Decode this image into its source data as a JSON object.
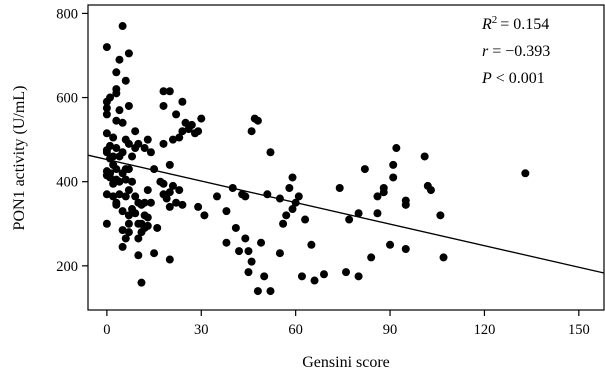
{
  "chart_data": {
    "type": "scatter",
    "xlabel": "Gensini score",
    "ylabel": "PON1 activity (U/mL)",
    "xlim": [
      -6,
      158
    ],
    "ylim": [
      95,
      820
    ],
    "x_ticks": [
      0,
      30,
      60,
      90,
      120,
      150
    ],
    "y_ticks": [
      200,
      400,
      600,
      800
    ],
    "grid": false,
    "series": [
      {
        "points": [
          [
            0,
            720
          ],
          [
            0,
            575
          ],
          [
            0,
            590
          ],
          [
            0,
            560
          ],
          [
            0,
            515
          ],
          [
            0,
            475
          ],
          [
            0,
            470
          ],
          [
            0,
            425
          ],
          [
            0,
            415
          ],
          [
            0,
            370
          ],
          [
            0,
            300
          ],
          [
            1,
            600
          ],
          [
            1,
            485
          ],
          [
            1,
            455
          ],
          [
            1,
            420
          ],
          [
            1,
            410
          ],
          [
            2,
            505
          ],
          [
            2,
            460
          ],
          [
            2,
            440
          ],
          [
            2,
            395
          ],
          [
            2,
            365
          ],
          [
            3,
            660
          ],
          [
            3,
            620
          ],
          [
            3,
            610
          ],
          [
            3,
            545
          ],
          [
            3,
            480
          ],
          [
            3,
            430
          ],
          [
            3,
            405
          ],
          [
            3,
            350
          ],
          [
            3,
            345
          ],
          [
            4,
            690
          ],
          [
            4,
            570
          ],
          [
            4,
            460
          ],
          [
            4,
            400
          ],
          [
            4,
            370
          ],
          [
            5,
            770
          ],
          [
            5,
            540
          ],
          [
            5,
            470
          ],
          [
            5,
            420
          ],
          [
            5,
            330
          ],
          [
            5,
            285
          ],
          [
            5,
            245
          ],
          [
            6,
            640
          ],
          [
            6,
            500
          ],
          [
            6,
            430
          ],
          [
            6,
            405
          ],
          [
            6,
            365
          ],
          [
            6,
            265
          ],
          [
            7,
            705
          ],
          [
            7,
            580
          ],
          [
            7,
            490
          ],
          [
            7,
            430
          ],
          [
            7,
            380
          ],
          [
            7,
            320
          ],
          [
            7,
            300
          ],
          [
            7,
            280
          ],
          [
            8,
            460
          ],
          [
            8,
            400
          ],
          [
            8,
            335
          ],
          [
            9,
            520
          ],
          [
            9,
            480
          ],
          [
            9,
            365
          ],
          [
            9,
            325
          ],
          [
            10,
            490
          ],
          [
            10,
            350
          ],
          [
            10,
            300
          ],
          [
            10,
            265
          ],
          [
            10,
            225
          ],
          [
            11,
            345
          ],
          [
            11,
            300
          ],
          [
            11,
            280
          ],
          [
            11,
            160
          ],
          [
            12,
            480
          ],
          [
            12,
            350
          ],
          [
            12,
            320
          ],
          [
            12,
            290
          ],
          [
            13,
            500
          ],
          [
            13,
            380
          ],
          [
            13,
            315
          ],
          [
            13,
            295
          ],
          [
            14,
            470
          ],
          [
            14,
            350
          ],
          [
            15,
            430
          ],
          [
            15,
            230
          ],
          [
            16,
            290
          ],
          [
            17,
            400
          ],
          [
            18,
            615
          ],
          [
            18,
            580
          ],
          [
            18,
            490
          ],
          [
            18,
            395
          ],
          [
            18,
            370
          ],
          [
            19,
            360
          ],
          [
            20,
            615
          ],
          [
            20,
            440
          ],
          [
            20,
            375
          ],
          [
            20,
            340
          ],
          [
            20,
            215
          ],
          [
            21,
            500
          ],
          [
            21,
            390
          ],
          [
            22,
            560
          ],
          [
            22,
            350
          ],
          [
            23,
            505
          ],
          [
            23,
            380
          ],
          [
            24,
            590
          ],
          [
            24,
            520
          ],
          [
            24,
            345
          ],
          [
            25,
            540
          ],
          [
            26,
            525
          ],
          [
            27,
            535
          ],
          [
            28,
            515
          ],
          [
            29,
            520
          ],
          [
            29,
            340
          ],
          [
            30,
            550
          ],
          [
            31,
            320
          ],
          [
            35,
            365
          ],
          [
            38,
            330
          ],
          [
            38,
            255
          ],
          [
            40,
            385
          ],
          [
            41,
            290
          ],
          [
            42,
            235
          ],
          [
            43,
            370
          ],
          [
            44,
            365
          ],
          [
            44,
            265
          ],
          [
            45,
            235
          ],
          [
            45,
            185
          ],
          [
            46,
            210
          ],
          [
            46,
            520
          ],
          [
            47,
            550
          ],
          [
            48,
            545
          ],
          [
            48,
            140
          ],
          [
            49,
            255
          ],
          [
            50,
            175
          ],
          [
            51,
            370
          ],
          [
            52,
            470
          ],
          [
            52,
            140
          ],
          [
            55,
            230
          ],
          [
            55,
            360
          ],
          [
            56,
            300
          ],
          [
            57,
            320
          ],
          [
            58,
            385
          ],
          [
            59,
            410
          ],
          [
            59,
            335
          ],
          [
            60,
            350
          ],
          [
            61,
            365
          ],
          [
            62,
            175
          ],
          [
            63,
            310
          ],
          [
            65,
            250
          ],
          [
            66,
            165
          ],
          [
            69,
            180
          ],
          [
            74,
            385
          ],
          [
            76,
            185
          ],
          [
            77,
            310
          ],
          [
            80,
            325
          ],
          [
            80,
            175
          ],
          [
            82,
            430
          ],
          [
            84,
            220
          ],
          [
            86,
            365
          ],
          [
            86,
            325
          ],
          [
            88,
            385
          ],
          [
            88,
            375
          ],
          [
            90,
            250
          ],
          [
            91,
            440
          ],
          [
            91,
            410
          ],
          [
            92,
            480
          ],
          [
            95,
            240
          ],
          [
            95,
            345
          ],
          [
            95,
            355
          ],
          [
            101,
            460
          ],
          [
            102,
            390
          ],
          [
            103,
            380
          ],
          [
            106,
            320
          ],
          [
            107,
            220
          ],
          [
            133,
            420
          ]
        ]
      }
    ],
    "regression": {
      "x_range": [
        -6,
        158
      ],
      "y_start": 463,
      "y_end": 183
    },
    "annotations": {
      "r2_label": "R",
      "r2_sup": "2",
      "r2_value": "= 0.154",
      "r_label": "r",
      "r_value": "= −0.393",
      "p_label": "P",
      "p_value": "< 0.001"
    }
  }
}
